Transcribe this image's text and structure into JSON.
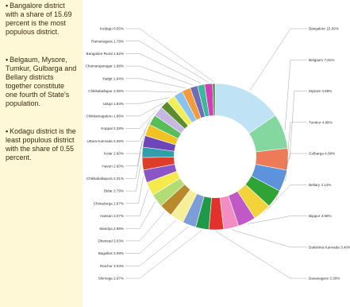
{
  "notes": [
    "Bangalore district with a share of 15.69 percent is the most populous district.",
    "Belgaum, Mysore, Tumkur, Gulbarga and Bellary districts together constitute one fourth of State's population.",
    "Kodagu district is the least populous district with the share of 0.55 percent."
  ],
  "chart_data": {
    "type": "pie",
    "title": "",
    "unit": "%",
    "slices": [
      {
        "name": "Bangalore",
        "value": 15.69,
        "color": "#bfe3f4"
      },
      {
        "name": "Belgaum",
        "value": 7.81,
        "color": "#84d79e"
      },
      {
        "name": "Mysore",
        "value": 4.88,
        "color": "#ee7a58"
      },
      {
        "name": "Tumkur",
        "value": 4.88,
        "color": "#5d92dc"
      },
      {
        "name": "Gulbarga",
        "value": 4.08,
        "color": "#2fa336"
      },
      {
        "name": "Bellary",
        "value": 4.14,
        "color": "#f3d33a"
      },
      {
        "name": "Bijapur",
        "value": 3.98,
        "color": "#c058c6"
      },
      {
        "name": "Dakshina Kannada",
        "value": 3.4,
        "color": "#f28ec2"
      },
      {
        "name": "Davanagere",
        "value": 3.3,
        "color": "#e3322c"
      },
      {
        "name": "Shimoga",
        "value": 2.97,
        "color": "#1d9948"
      },
      {
        "name": "Raichur",
        "value": 3.03,
        "color": "#7b9dd8"
      },
      {
        "name": "Bagalkot",
        "value": 3.08,
        "color": "#f6ef9a"
      },
      {
        "name": "Dharwad",
        "value": 3.03,
        "color": "#b98a2c"
      },
      {
        "name": "Mandya",
        "value": 2.98,
        "color": "#b4dc74"
      },
      {
        "name": "Hassan",
        "value": 3.07,
        "color": "#f4ea4c"
      },
      {
        "name": "Chitradurga",
        "value": 2.87,
        "color": "#8a55c4"
      },
      {
        "name": "Bidar",
        "value": 2.79,
        "color": "#de3d2a"
      },
      {
        "name": "Chikkaballapura",
        "value": 2.31,
        "color": "#2f9fa9"
      },
      {
        "name": "Haveri",
        "value": 2.6,
        "color": "#6e46b8"
      },
      {
        "name": "Kolar",
        "value": 2.6,
        "color": "#f0c323"
      },
      {
        "name": "Uttara Kannada",
        "value": 2.36,
        "color": "#57bd57"
      },
      {
        "name": "Koppal",
        "value": 2.28,
        "color": "#c7b8e3"
      },
      {
        "name": "Chikkamagaluru",
        "value": 1.86,
        "color": "#5b8d2e"
      },
      {
        "name": "Udupi",
        "value": 1.93,
        "color": "#f0ef5a"
      },
      {
        "name": "Chikkaballapur",
        "value": 2.05,
        "color": "#8ac3ee"
      },
      {
        "name": "Yadgir",
        "value": 1.94,
        "color": "#f39a3d"
      },
      {
        "name": "Chamarajanagar",
        "value": 1.68,
        "color": "#6f6bb8"
      },
      {
        "name": "Bangalore Rural",
        "value": 1.62,
        "color": "#3bb89c"
      },
      {
        "name": "Ramanagara",
        "value": 1.78,
        "color": "#d23fb2"
      },
      {
        "name": "Kodagu",
        "value": 0.55,
        "color": "#3a8e4a"
      }
    ]
  }
}
